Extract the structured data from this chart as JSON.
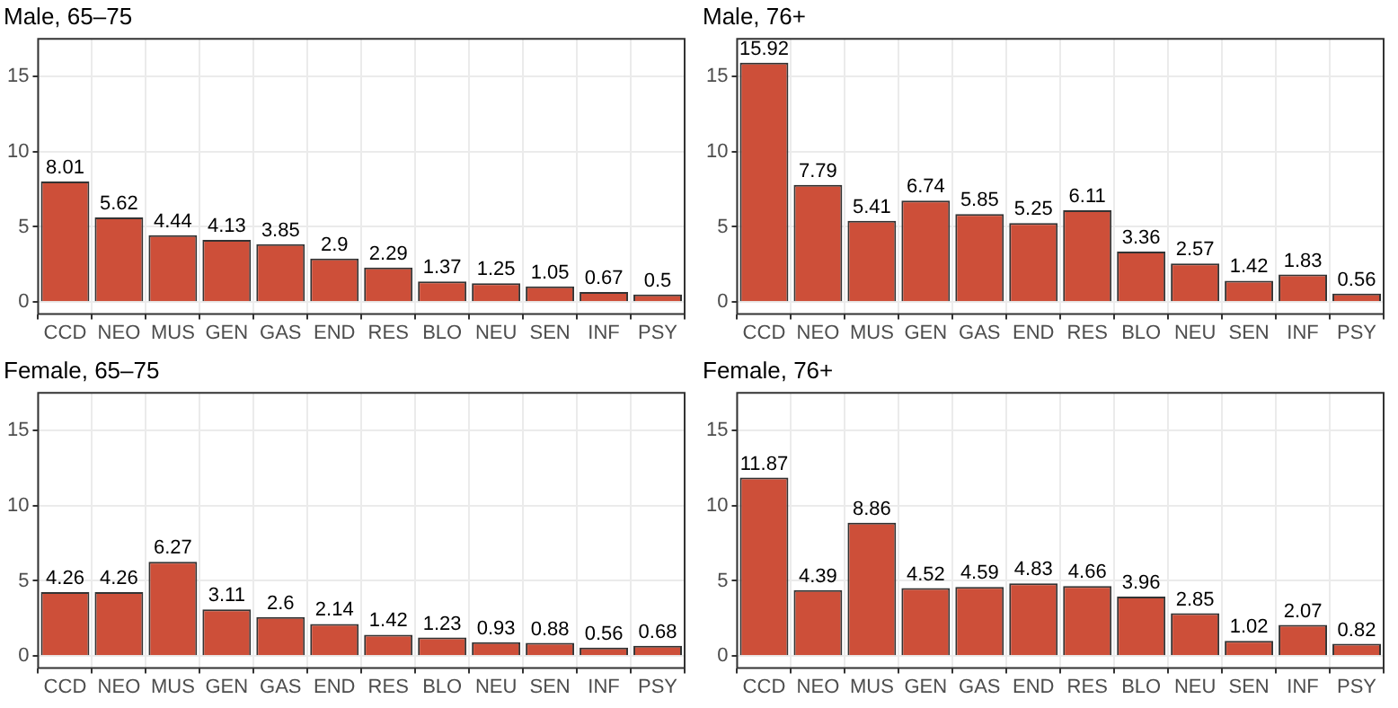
{
  "chart_data": [
    {
      "type": "bar",
      "title": "Male, 65–75",
      "categories": [
        "CCD",
        "NEO",
        "MUS",
        "GEN",
        "GAS",
        "END",
        "RES",
        "BLO",
        "NEU",
        "SEN",
        "INF",
        "PSY"
      ],
      "values": [
        8.01,
        5.62,
        4.44,
        4.13,
        3.85,
        2.9,
        2.29,
        1.37,
        1.25,
        1.05,
        0.67,
        0.5
      ],
      "color": "#cd4f39",
      "ylim": [
        -0.8,
        17.5
      ],
      "yticks": [
        0,
        5,
        10,
        15
      ],
      "grid": true,
      "data_labels": true
    },
    {
      "type": "bar",
      "title": "Male, 76+",
      "categories": [
        "CCD",
        "NEO",
        "MUS",
        "GEN",
        "GAS",
        "END",
        "RES",
        "BLO",
        "NEU",
        "SEN",
        "INF",
        "PSY"
      ],
      "values": [
        15.92,
        7.79,
        5.41,
        6.74,
        5.85,
        5.25,
        6.11,
        3.36,
        2.57,
        1.42,
        1.83,
        0.56
      ],
      "color": "#cd4f39",
      "ylim": [
        -0.8,
        17.5
      ],
      "yticks": [
        0,
        5,
        10,
        15
      ],
      "grid": true,
      "data_labels": true
    },
    {
      "type": "bar",
      "title": "Female, 65–75",
      "categories": [
        "CCD",
        "NEO",
        "MUS",
        "GEN",
        "GAS",
        "END",
        "RES",
        "BLO",
        "NEU",
        "SEN",
        "INF",
        "PSY"
      ],
      "values": [
        4.26,
        4.26,
        6.27,
        3.11,
        2.6,
        2.14,
        1.42,
        1.23,
        0.93,
        0.88,
        0.56,
        0.68
      ],
      "color": "#cd4f39",
      "ylim": [
        -0.8,
        17.5
      ],
      "yticks": [
        0,
        5,
        10,
        15
      ],
      "grid": true,
      "data_labels": true
    },
    {
      "type": "bar",
      "title": "Female, 76+",
      "categories": [
        "CCD",
        "NEO",
        "MUS",
        "GEN",
        "GAS",
        "END",
        "RES",
        "BLO",
        "NEU",
        "SEN",
        "INF",
        "PSY"
      ],
      "values": [
        11.87,
        4.39,
        8.86,
        4.52,
        4.59,
        4.83,
        4.66,
        3.96,
        2.85,
        1.02,
        2.07,
        0.82
      ],
      "color": "#cd4f39",
      "ylim": [
        -0.8,
        17.5
      ],
      "yticks": [
        0,
        5,
        10,
        15
      ],
      "grid": true,
      "data_labels": true
    }
  ]
}
